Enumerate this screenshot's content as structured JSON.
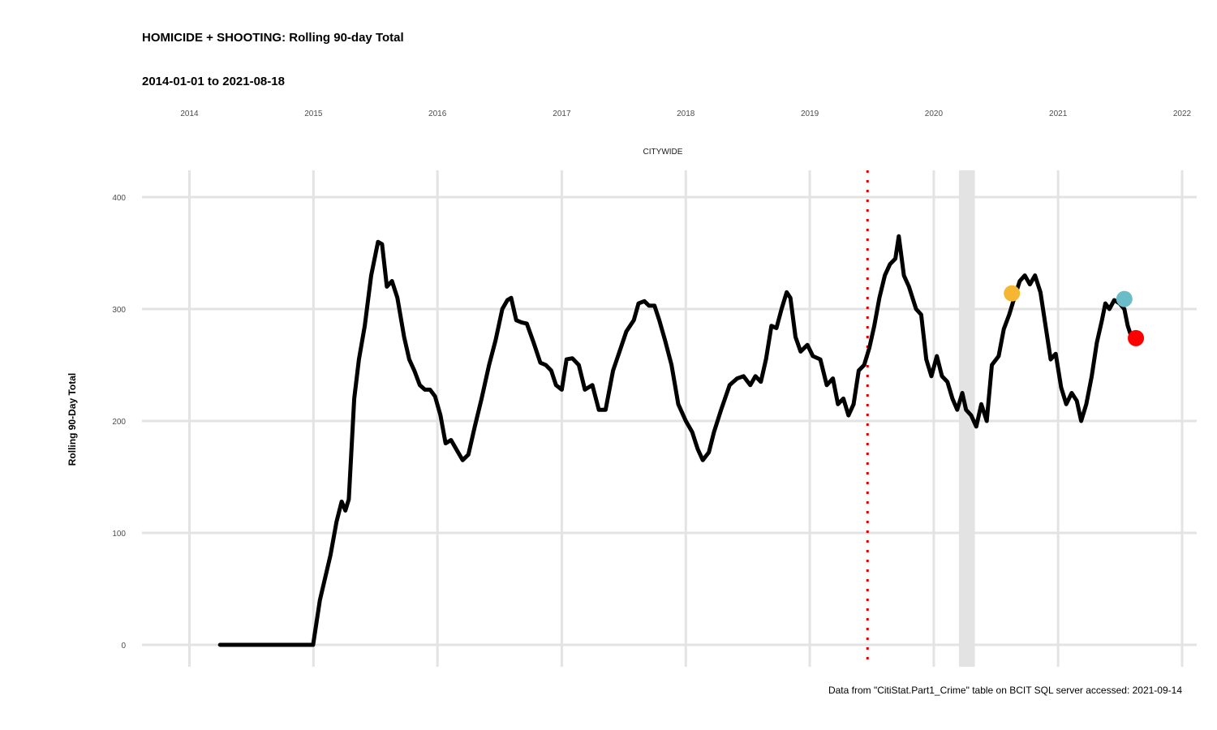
{
  "title": "HOMICIDE + SHOOTING: Rolling 90-day Total",
  "subtitle": "2014-01-01 to 2021-08-18",
  "caption": "Data from \"CitiStat.Part1_Crime\" table on BCIT SQL server accessed: 2021-09-14",
  "colors": {
    "line": "#000000",
    "grid": "#e3e3e3",
    "vline": "#e00000",
    "shade": "#e3e3e3",
    "marker_orange": "#f5b731",
    "marker_blue": "#6bbcc9",
    "marker_red": "#ff0000"
  },
  "chart_data": {
    "type": "line",
    "title": "HOMICIDE + SHOOTING: Rolling 90-day Total",
    "subtitle": "2014-01-01 to 2021-08-18",
    "facet": "CITYWIDE",
    "xlabel": "",
    "ylabel": "Rolling 90-Day Total",
    "xlim": [
      "2014-01-01",
      "2022-01-01"
    ],
    "ylim": [
      0,
      400
    ],
    "x_ticks": [
      "2014",
      "2015",
      "2016",
      "2017",
      "2018",
      "2019",
      "2020",
      "2021",
      "2022"
    ],
    "y_ticks": [
      0,
      100,
      200,
      300,
      400
    ],
    "x_axis_position": "top",
    "grid": true,
    "legend": "none",
    "series": [
      {
        "points": [
          [
            "2014-04-01",
            0
          ],
          [
            "2014-12-31",
            0
          ],
          [
            "2015-01-20",
            40
          ],
          [
            "2015-02-20",
            80
          ],
          [
            "2015-03-10",
            110
          ],
          [
            "2015-03-25",
            128
          ],
          [
            "2015-04-05",
            120
          ],
          [
            "2015-04-15",
            130
          ],
          [
            "2015-05-01",
            220
          ],
          [
            "2015-05-15",
            255
          ],
          [
            "2015-06-01",
            285
          ],
          [
            "2015-06-20",
            330
          ],
          [
            "2015-07-10",
            360
          ],
          [
            "2015-07-22",
            358
          ],
          [
            "2015-08-05",
            320
          ],
          [
            "2015-08-20",
            325
          ],
          [
            "2015-09-05",
            310
          ],
          [
            "2015-09-25",
            275
          ],
          [
            "2015-10-10",
            255
          ],
          [
            "2015-10-25",
            245
          ],
          [
            "2015-11-10",
            232
          ],
          [
            "2015-11-25",
            228
          ],
          [
            "2015-12-10",
            228
          ],
          [
            "2015-12-25",
            222
          ],
          [
            "2016-01-10",
            205
          ],
          [
            "2016-01-25",
            180
          ],
          [
            "2016-02-10",
            183
          ],
          [
            "2016-02-25",
            175
          ],
          [
            "2016-03-15",
            165
          ],
          [
            "2016-04-01",
            170
          ],
          [
            "2016-04-20",
            195
          ],
          [
            "2016-05-10",
            220
          ],
          [
            "2016-06-01",
            250
          ],
          [
            "2016-06-20",
            272
          ],
          [
            "2016-07-10",
            300
          ],
          [
            "2016-07-25",
            308
          ],
          [
            "2016-08-05",
            310
          ],
          [
            "2016-08-20",
            290
          ],
          [
            "2016-09-05",
            288
          ],
          [
            "2016-09-20",
            287
          ],
          [
            "2016-10-10",
            270
          ],
          [
            "2016-10-30",
            252
          ],
          [
            "2016-11-15",
            250
          ],
          [
            "2016-12-01",
            245
          ],
          [
            "2016-12-15",
            232
          ],
          [
            "2017-01-01",
            228
          ],
          [
            "2017-01-15",
            255
          ],
          [
            "2017-02-01",
            256
          ],
          [
            "2017-02-20",
            250
          ],
          [
            "2017-03-10",
            228
          ],
          [
            "2017-04-01",
            232
          ],
          [
            "2017-04-20",
            210
          ],
          [
            "2017-05-10",
            210
          ],
          [
            "2017-06-01",
            245
          ],
          [
            "2017-06-20",
            262
          ],
          [
            "2017-07-10",
            280
          ],
          [
            "2017-08-01",
            290
          ],
          [
            "2017-08-15",
            305
          ],
          [
            "2017-09-01",
            307
          ],
          [
            "2017-09-15",
            303
          ],
          [
            "2017-10-01",
            303
          ],
          [
            "2017-10-15",
            290
          ],
          [
            "2017-11-01",
            272
          ],
          [
            "2017-11-20",
            250
          ],
          [
            "2017-12-10",
            215
          ],
          [
            "2018-01-01",
            200
          ],
          [
            "2018-01-20",
            190
          ],
          [
            "2018-02-05",
            175
          ],
          [
            "2018-02-20",
            165
          ],
          [
            "2018-03-10",
            172
          ],
          [
            "2018-03-25",
            190
          ],
          [
            "2018-04-15",
            210
          ],
          [
            "2018-05-10",
            232
          ],
          [
            "2018-06-01",
            238
          ],
          [
            "2018-06-20",
            240
          ],
          [
            "2018-07-10",
            232
          ],
          [
            "2018-07-25",
            240
          ],
          [
            "2018-08-10",
            235
          ],
          [
            "2018-08-25",
            255
          ],
          [
            "2018-09-10",
            285
          ],
          [
            "2018-09-25",
            283
          ],
          [
            "2018-10-10",
            300
          ],
          [
            "2018-10-25",
            315
          ],
          [
            "2018-11-05",
            310
          ],
          [
            "2018-11-20",
            275
          ],
          [
            "2018-12-05",
            262
          ],
          [
            "2018-12-25",
            268
          ],
          [
            "2019-01-10",
            258
          ],
          [
            "2019-02-01",
            255
          ],
          [
            "2019-02-20",
            232
          ],
          [
            "2019-03-10",
            238
          ],
          [
            "2019-03-25",
            215
          ],
          [
            "2019-04-10",
            220
          ],
          [
            "2019-04-25",
            205
          ],
          [
            "2019-05-10",
            215
          ],
          [
            "2019-05-25",
            245
          ],
          [
            "2019-06-10",
            250
          ],
          [
            "2019-06-25",
            265
          ],
          [
            "2019-07-10",
            285
          ],
          [
            "2019-07-25",
            310
          ],
          [
            "2019-08-10",
            330
          ],
          [
            "2019-08-25",
            340
          ],
          [
            "2019-09-10",
            345
          ],
          [
            "2019-09-20",
            365
          ],
          [
            "2019-10-05",
            330
          ],
          [
            "2019-10-20",
            320
          ],
          [
            "2019-11-10",
            300
          ],
          [
            "2019-11-25",
            295
          ],
          [
            "2019-12-10",
            255
          ],
          [
            "2019-12-25",
            240
          ],
          [
            "2020-01-10",
            258
          ],
          [
            "2020-01-25",
            240
          ],
          [
            "2020-02-10",
            235
          ],
          [
            "2020-02-25",
            220
          ],
          [
            "2020-03-10",
            210
          ],
          [
            "2020-03-25",
            225
          ],
          [
            "2020-04-05",
            210
          ],
          [
            "2020-04-20",
            205
          ],
          [
            "2020-05-05",
            195
          ],
          [
            "2020-05-20",
            215
          ],
          [
            "2020-06-05",
            200
          ],
          [
            "2020-06-20",
            250
          ],
          [
            "2020-07-10",
            258
          ],
          [
            "2020-07-25",
            282
          ],
          [
            "2020-08-10",
            295
          ],
          [
            "2020-08-25",
            310
          ],
          [
            "2020-09-10",
            325
          ],
          [
            "2020-09-25",
            330
          ],
          [
            "2020-10-10",
            322
          ],
          [
            "2020-10-25",
            330
          ],
          [
            "2020-11-10",
            315
          ],
          [
            "2020-11-25",
            285
          ],
          [
            "2020-12-10",
            255
          ],
          [
            "2020-12-25",
            260
          ],
          [
            "2021-01-10",
            230
          ],
          [
            "2021-01-25",
            215
          ],
          [
            "2021-02-10",
            225
          ],
          [
            "2021-02-25",
            218
          ],
          [
            "2021-03-10",
            200
          ],
          [
            "2021-03-25",
            215
          ],
          [
            "2021-04-10",
            240
          ],
          [
            "2021-04-25",
            270
          ],
          [
            "2021-05-10",
            290
          ],
          [
            "2021-05-20",
            305
          ],
          [
            "2021-06-01",
            300
          ],
          [
            "2021-06-15",
            308
          ],
          [
            "2021-07-01",
            305
          ],
          [
            "2021-07-15",
            300
          ],
          [
            "2021-07-25",
            285
          ],
          [
            "2021-08-05",
            275
          ],
          [
            "2021-08-18",
            273
          ]
        ]
      }
    ],
    "reference_line": {
      "x": "2019-06-20",
      "style": "dotted",
      "color": "#e00000"
    },
    "shaded_band": {
      "x_start": "2020-03-15",
      "x_end": "2020-05-01",
      "color": "#e3e3e3"
    },
    "markers": [
      {
        "x": "2020-08-18",
        "y": 314,
        "color": "#f5b731"
      },
      {
        "x": "2021-07-15",
        "y": 309,
        "color": "#6bbcc9"
      },
      {
        "x": "2021-08-18",
        "y": 274,
        "color": "#ff0000"
      }
    ]
  }
}
